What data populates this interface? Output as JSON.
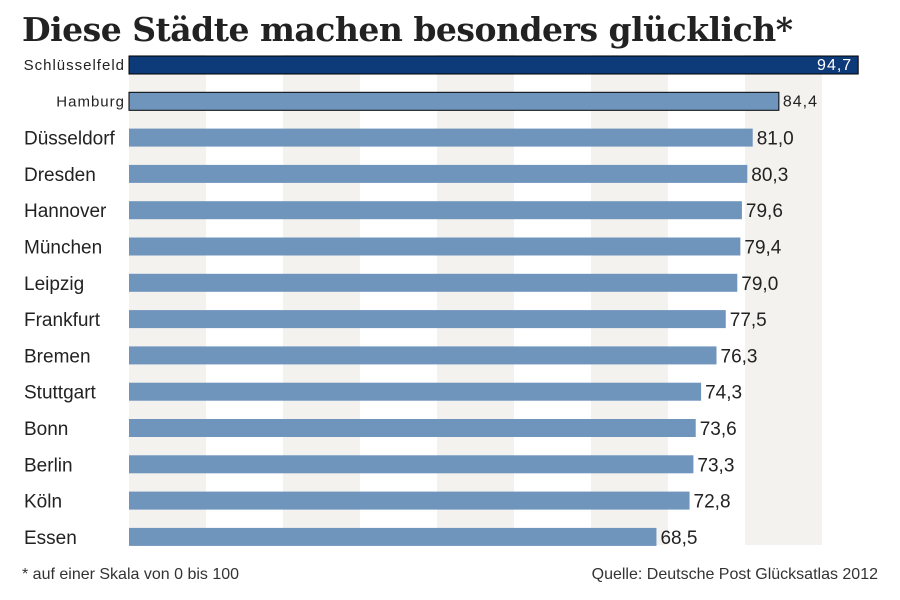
{
  "title": "Diese Städte machen besonders glücklich*",
  "footnote": "* auf einer Skala von 0 bis 100",
  "source": "Quelle: Deutsche Post Glücksatlas 2012",
  "colors": {
    "bar": "#6f95bd",
    "highlight_bar": "#0d3a78",
    "highlight_text": "#ffffff",
    "stripe": "#f3f2ee",
    "text": "#222222"
  },
  "chart_data": {
    "type": "bar",
    "orientation": "horizontal",
    "categories": [
      "Schlüsselfeld",
      "Hamburg",
      "Düsseldorf",
      "Dresden",
      "Hannover",
      "München",
      "Leipzig",
      "Frankfurt",
      "Bremen",
      "Stuttgart",
      "Bonn",
      "Berlin",
      "Köln",
      "Essen"
    ],
    "values": [
      94.7,
      84.4,
      81.0,
      80.3,
      79.6,
      79.4,
      79.0,
      77.5,
      76.3,
      74.3,
      73.6,
      73.3,
      72.8,
      68.5
    ],
    "value_labels": [
      "94,7",
      "84,4",
      "81,0",
      "80,3",
      "79,6",
      "79,4",
      "79,0",
      "77,5",
      "76,3",
      "74,3",
      "73,6",
      "73,3",
      "72,8",
      "68,5"
    ],
    "xlim": [
      0,
      100
    ],
    "highlighted": [
      "Schlüsselfeld",
      "Hamburg"
    ],
    "grid": "alternating vertical bands",
    "legend": "none"
  }
}
